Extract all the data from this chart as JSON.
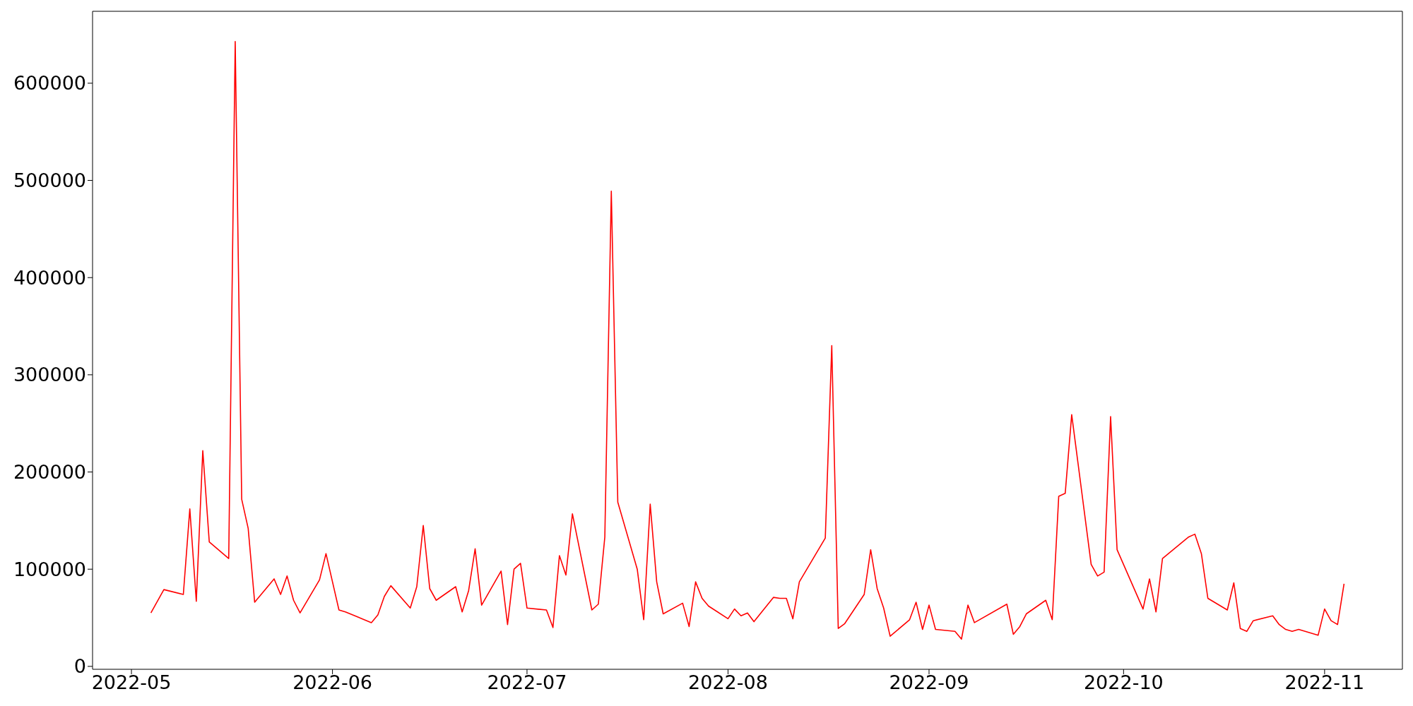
{
  "chart_data": {
    "type": "line",
    "x": [
      "2022-05-04",
      "2022-05-06",
      "2022-05-09",
      "2022-05-10",
      "2022-05-11",
      "2022-05-12",
      "2022-05-13",
      "2022-05-16",
      "2022-05-17",
      "2022-05-18",
      "2022-05-19",
      "2022-05-20",
      "2022-05-23",
      "2022-05-24",
      "2022-05-25",
      "2022-05-26",
      "2022-05-27",
      "2022-05-30",
      "2022-05-31",
      "2022-06-02",
      "2022-06-03",
      "2022-06-07",
      "2022-06-08",
      "2022-06-09",
      "2022-06-10",
      "2022-06-13",
      "2022-06-14",
      "2022-06-15",
      "2022-06-16",
      "2022-06-17",
      "2022-06-20",
      "2022-06-21",
      "2022-06-22",
      "2022-06-23",
      "2022-06-24",
      "2022-06-27",
      "2022-06-28",
      "2022-06-29",
      "2022-06-30",
      "2022-07-01",
      "2022-07-04",
      "2022-07-05",
      "2022-07-06",
      "2022-07-07",
      "2022-07-08",
      "2022-07-11",
      "2022-07-12",
      "2022-07-13",
      "2022-07-14",
      "2022-07-15",
      "2022-07-18",
      "2022-07-19",
      "2022-07-20",
      "2022-07-21",
      "2022-07-22",
      "2022-07-25",
      "2022-07-26",
      "2022-07-27",
      "2022-07-28",
      "2022-07-29",
      "2022-08-01",
      "2022-08-02",
      "2022-08-03",
      "2022-08-04",
      "2022-08-05",
      "2022-08-08",
      "2022-08-09",
      "2022-08-10",
      "2022-08-11",
      "2022-08-12",
      "2022-08-16",
      "2022-08-17",
      "2022-08-18",
      "2022-08-19",
      "2022-08-22",
      "2022-08-23",
      "2022-08-24",
      "2022-08-25",
      "2022-08-26",
      "2022-08-29",
      "2022-08-30",
      "2022-08-31",
      "2022-09-01",
      "2022-09-02",
      "2022-09-05",
      "2022-09-06",
      "2022-09-07",
      "2022-09-08",
      "2022-09-13",
      "2022-09-14",
      "2022-09-15",
      "2022-09-16",
      "2022-09-19",
      "2022-09-20",
      "2022-09-21",
      "2022-09-22",
      "2022-09-23",
      "2022-09-26",
      "2022-09-27",
      "2022-09-28",
      "2022-09-29",
      "2022-09-30",
      "2022-10-04",
      "2022-10-05",
      "2022-10-06",
      "2022-10-07",
      "2022-10-11",
      "2022-10-12",
      "2022-10-13",
      "2022-10-14",
      "2022-10-17",
      "2022-10-18",
      "2022-10-19",
      "2022-10-20",
      "2022-10-21",
      "2022-10-24",
      "2022-10-25",
      "2022-10-26",
      "2022-10-27",
      "2022-10-28",
      "2022-10-31",
      "2022-11-01",
      "2022-11-02",
      "2022-11-03",
      "2022-11-04"
    ],
    "series": [
      {
        "color": "#ff0000",
        "values": [
          55000,
          79000,
          74000,
          162000,
          67000,
          222000,
          128000,
          111000,
          643000,
          172000,
          142000,
          66000,
          90000,
          74000,
          93000,
          68000,
          55000,
          89000,
          116000,
          58000,
          56000,
          45000,
          53000,
          72000,
          83000,
          60000,
          82000,
          145000,
          80000,
          68000,
          82000,
          56000,
          78000,
          121000,
          63000,
          98000,
          43000,
          100000,
          106000,
          60000,
          58000,
          40000,
          114000,
          94000,
          157000,
          58000,
          64000,
          133000,
          489000,
          169000,
          100000,
          48000,
          167000,
          87000,
          54000,
          65000,
          41000,
          87000,
          70000,
          62000,
          49000,
          59000,
          52000,
          55000,
          46000,
          71000,
          70000,
          70000,
          49000,
          87000,
          132000,
          330000,
          39000,
          44000,
          74000,
          120000,
          80000,
          60000,
          31000,
          48000,
          66000,
          38000,
          63000,
          38000,
          36000,
          28000,
          63000,
          45000,
          64000,
          33000,
          41000,
          54000,
          68000,
          48000,
          175000,
          178000,
          259000,
          105000,
          93000,
          97000,
          257000,
          120000,
          59000,
          90000,
          56000,
          111000,
          133000,
          136000,
          116000,
          70000,
          58000,
          86000,
          39000,
          36000,
          47000,
          52000,
          43000,
          38000,
          36000,
          38000,
          32000,
          59000,
          47000,
          43000,
          85000
        ]
      }
    ],
    "xlim": [
      "2022-04-25",
      "2022-11-13"
    ],
    "xticks": [
      {
        "value": "2022-05-01",
        "label": "2022-05"
      },
      {
        "value": "2022-06-01",
        "label": "2022-06"
      },
      {
        "value": "2022-07-01",
        "label": "2022-07"
      },
      {
        "value": "2022-08-01",
        "label": "2022-08"
      },
      {
        "value": "2022-09-01",
        "label": "2022-09"
      },
      {
        "value": "2022-10-01",
        "label": "2022-10"
      },
      {
        "value": "2022-11-01",
        "label": "2022-11"
      }
    ],
    "ylim": [
      -3000,
      674000
    ],
    "yticks": [
      0,
      100000,
      200000,
      300000,
      400000,
      500000,
      600000
    ],
    "grid": false,
    "legend": false,
    "marker": "none",
    "line_style": "solid"
  }
}
